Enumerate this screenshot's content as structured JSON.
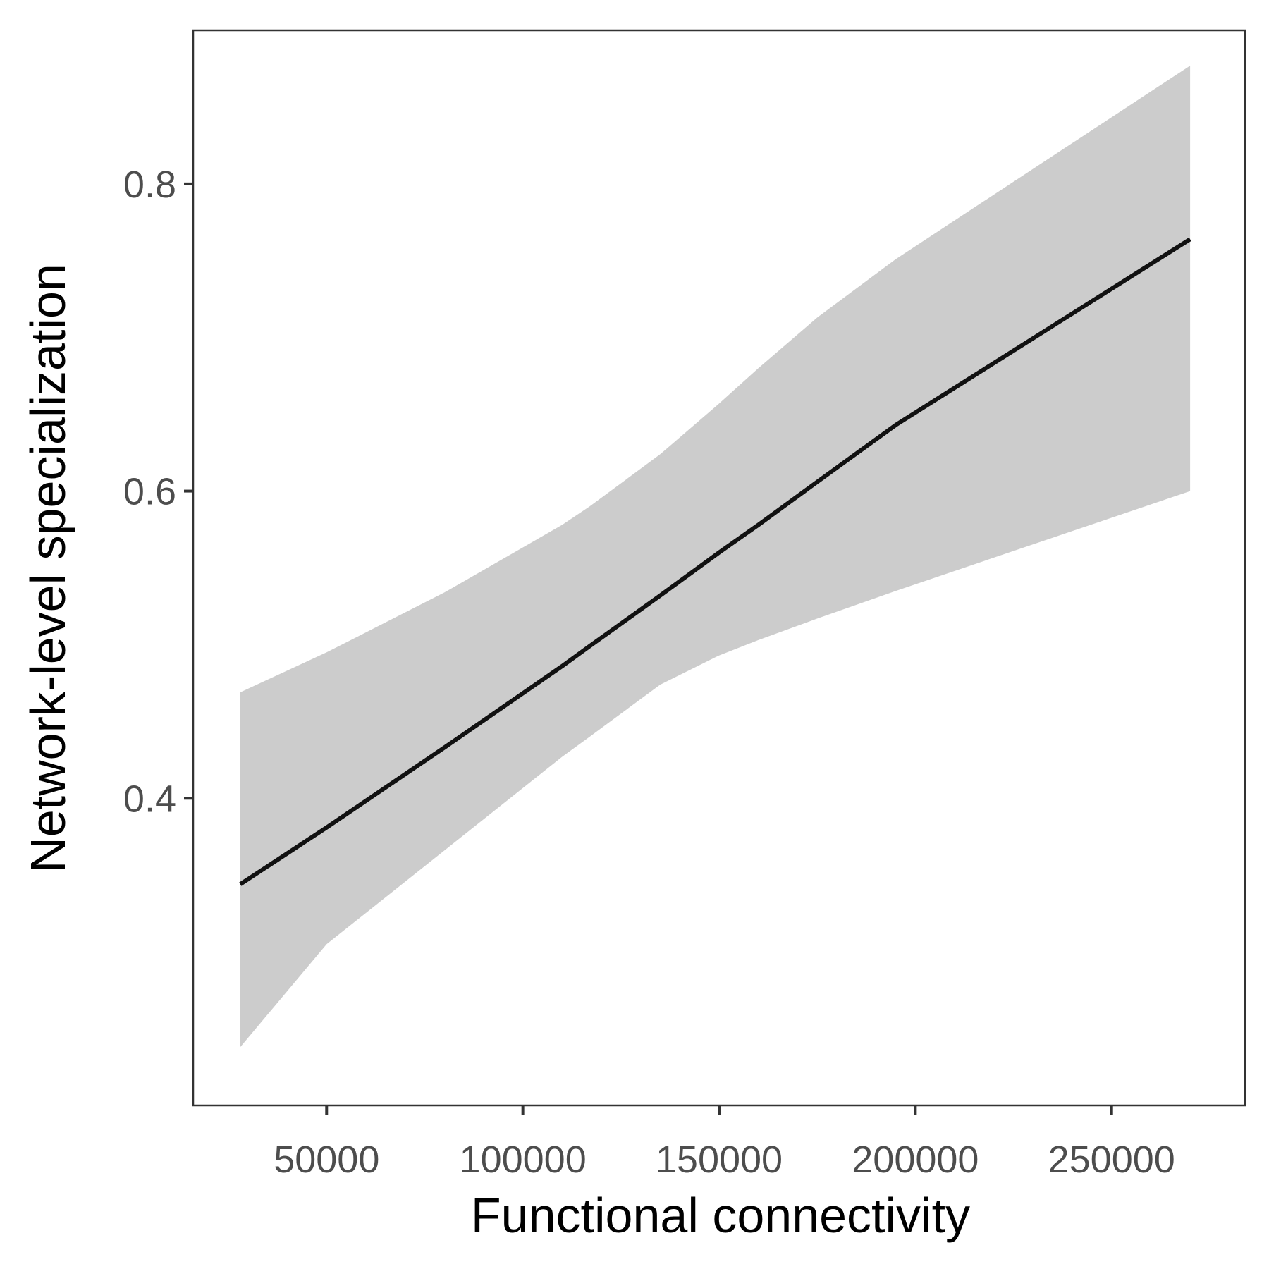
{
  "chart_data": {
    "type": "line",
    "title": "",
    "xlabel": "Functional connectivity",
    "ylabel": "Network-level specialization",
    "xlim": [
      16000,
      284000
    ],
    "ylim": [
      0.2,
      0.9
    ],
    "x_ticks": [
      50000,
      100000,
      150000,
      200000,
      250000
    ],
    "x_tick_labels": [
      "50000",
      "100000",
      "150000",
      "200000",
      "250000"
    ],
    "y_ticks": [
      0.4,
      0.6,
      0.8
    ],
    "y_tick_labels": [
      "0.4",
      "0.6",
      "0.8"
    ],
    "grid": false,
    "legend": "none",
    "series": [
      {
        "x": [
          28000,
          50000,
          80000,
          110000,
          117000,
          135000,
          150000,
          160000,
          175000,
          195000,
          270000
        ],
        "values": [
          0.344,
          0.381,
          0.433,
          0.486,
          0.499,
          0.532,
          0.56,
          0.578,
          0.606,
          0.643,
          0.764
        ],
        "lower": [
          0.238,
          0.305,
          0.366,
          0.427,
          0.44,
          0.474,
          0.493,
          0.503,
          0.517,
          0.535,
          0.6
        ],
        "upper": [
          0.469,
          0.495,
          0.534,
          0.578,
          0.59,
          0.624,
          0.657,
          0.68,
          0.713,
          0.751,
          0.877
        ]
      }
    ],
    "colors": {
      "line": "#111111",
      "ribbon": "#cccccc",
      "panel_border": "#333333",
      "tick_label": "#4d4d4d",
      "axis_title": "#000000"
    }
  }
}
